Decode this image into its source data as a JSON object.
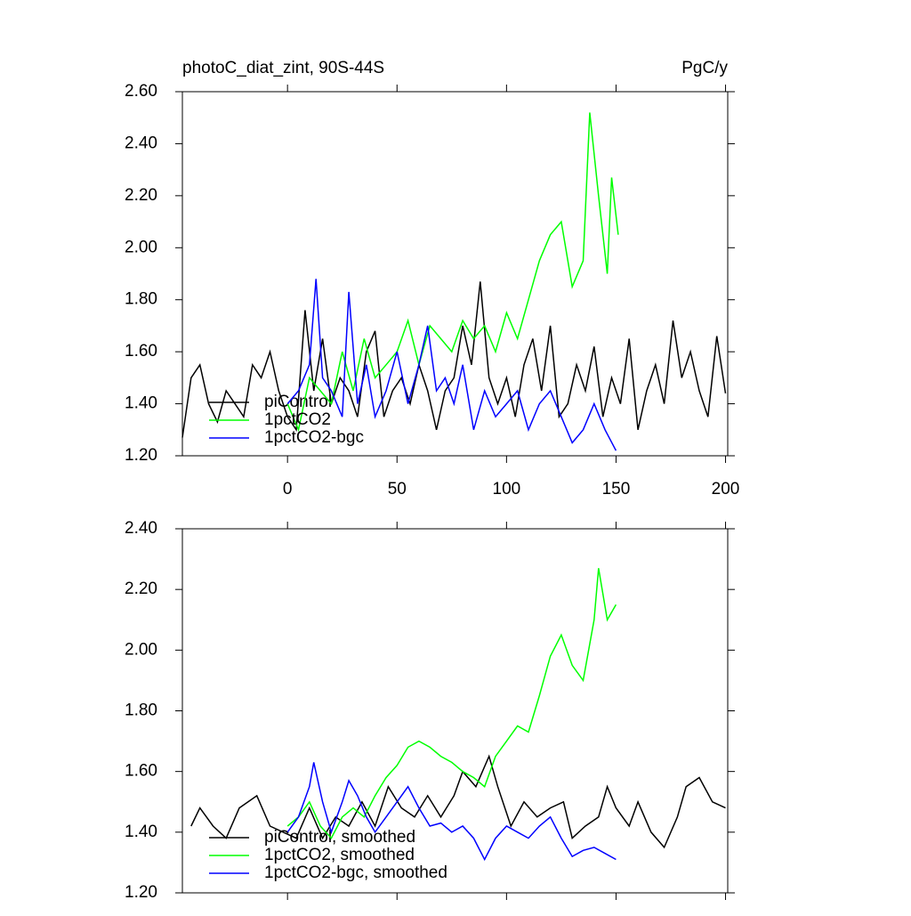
{
  "chart_data": [
    {
      "type": "line",
      "title": "photoC_diat_zint, 90S-44S",
      "units": "PgC/y",
      "xlim": [
        -48,
        201
      ],
      "ylim": [
        1.2,
        2.6
      ],
      "xticks": [
        0,
        50,
        100,
        150,
        200
      ],
      "yticks": [
        {
          "value": 1.2,
          "label": "1.20"
        },
        {
          "value": 1.4,
          "label": "1.40"
        },
        {
          "value": 1.6,
          "label": "1.60"
        },
        {
          "value": 1.8,
          "label": "1.80"
        },
        {
          "value": 2.0,
          "label": "2.00"
        },
        {
          "value": 2.2,
          "label": "2.20"
        },
        {
          "value": 2.4,
          "label": "2.40"
        },
        {
          "value": 2.6,
          "label": "2.60"
        }
      ],
      "series": [
        {
          "name": "piControl",
          "color": "#000000",
          "x": [
            -48,
            -44,
            -40,
            -36,
            -32,
            -28,
            -24,
            -20,
            -16,
            -12,
            -8,
            -4,
            0,
            4,
            8,
            12,
            16,
            20,
            24,
            28,
            32,
            36,
            40,
            44,
            48,
            52,
            56,
            60,
            64,
            68,
            72,
            76,
            80,
            84,
            88,
            92,
            96,
            100,
            104,
            108,
            112,
            116,
            120,
            124,
            128,
            132,
            136,
            140,
            144,
            148,
            152,
            156,
            160,
            164,
            168,
            172,
            176,
            180,
            184,
            188,
            192,
            196,
            200
          ],
          "values": [
            1.27,
            1.5,
            1.55,
            1.4,
            1.33,
            1.45,
            1.4,
            1.35,
            1.55,
            1.5,
            1.6,
            1.45,
            1.35,
            1.3,
            1.76,
            1.45,
            1.65,
            1.4,
            1.5,
            1.45,
            1.35,
            1.6,
            1.68,
            1.35,
            1.45,
            1.5,
            1.4,
            1.55,
            1.45,
            1.3,
            1.45,
            1.5,
            1.7,
            1.55,
            1.87,
            1.5,
            1.4,
            1.5,
            1.35,
            1.55,
            1.65,
            1.45,
            1.7,
            1.35,
            1.4,
            1.55,
            1.45,
            1.62,
            1.35,
            1.5,
            1.4,
            1.65,
            1.3,
            1.45,
            1.55,
            1.4,
            1.72,
            1.5,
            1.6,
            1.45,
            1.35,
            1.66,
            1.44
          ]
        },
        {
          "name": "1pctCO2",
          "color": "#00ff00",
          "x": [
            0,
            5,
            10,
            15,
            20,
            25,
            30,
            35,
            40,
            45,
            50,
            55,
            60,
            65,
            70,
            75,
            80,
            85,
            90,
            95,
            100,
            105,
            110,
            115,
            120,
            125,
            130,
            135,
            138,
            142,
            146,
            148,
            151
          ],
          "values": [
            1.4,
            1.3,
            1.5,
            1.45,
            1.4,
            1.6,
            1.45,
            1.65,
            1.5,
            1.55,
            1.6,
            1.72,
            1.55,
            1.7,
            1.65,
            1.6,
            1.72,
            1.65,
            1.7,
            1.6,
            1.75,
            1.65,
            1.8,
            1.95,
            2.05,
            2.1,
            1.85,
            1.95,
            2.52,
            2.2,
            1.9,
            2.27,
            2.05
          ]
        },
        {
          "name": "1pctCO2-bgc",
          "color": "#0000ff",
          "x": [
            0,
            5,
            10,
            13,
            16,
            20,
            25,
            28,
            32,
            36,
            40,
            45,
            50,
            55,
            60,
            64,
            68,
            72,
            76,
            80,
            85,
            90,
            95,
            100,
            105,
            110,
            115,
            120,
            125,
            130,
            135,
            140,
            145,
            150
          ],
          "values": [
            1.4,
            1.45,
            1.55,
            1.88,
            1.5,
            1.45,
            1.35,
            1.83,
            1.4,
            1.55,
            1.35,
            1.45,
            1.6,
            1.4,
            1.55,
            1.7,
            1.45,
            1.5,
            1.4,
            1.55,
            1.3,
            1.45,
            1.35,
            1.4,
            1.45,
            1.3,
            1.4,
            1.45,
            1.35,
            1.25,
            1.3,
            1.4,
            1.3,
            1.22
          ]
        }
      ]
    },
    {
      "type": "line",
      "xlim": [
        -48,
        201
      ],
      "ylim": [
        1.2,
        2.4
      ],
      "xticks": [
        0,
        50,
        100,
        150,
        200
      ],
      "yticks": [
        {
          "value": 1.2,
          "label": "1.20"
        },
        {
          "value": 1.4,
          "label": "1.40"
        },
        {
          "value": 1.6,
          "label": "1.60"
        },
        {
          "value": 1.8,
          "label": "1.80"
        },
        {
          "value": 2.0,
          "label": "2.00"
        },
        {
          "value": 2.2,
          "label": "2.20"
        },
        {
          "value": 2.4,
          "label": "2.40"
        }
      ],
      "series": [
        {
          "name": "piControl, smoothed",
          "color": "#000000",
          "x": [
            -44,
            -40,
            -34,
            -28,
            -22,
            -14,
            -8,
            -2,
            4,
            10,
            16,
            22,
            28,
            34,
            40,
            46,
            52,
            58,
            64,
            70,
            76,
            80,
            86,
            92,
            96,
            102,
            108,
            114,
            120,
            126,
            130,
            136,
            142,
            146,
            150,
            156,
            160,
            166,
            172,
            178,
            182,
            188,
            194,
            200
          ],
          "values": [
            1.42,
            1.48,
            1.42,
            1.38,
            1.48,
            1.52,
            1.42,
            1.4,
            1.38,
            1.48,
            1.38,
            1.45,
            1.42,
            1.5,
            1.42,
            1.55,
            1.48,
            1.45,
            1.52,
            1.45,
            1.52,
            1.6,
            1.55,
            1.65,
            1.55,
            1.42,
            1.5,
            1.45,
            1.48,
            1.5,
            1.38,
            1.42,
            1.45,
            1.55,
            1.48,
            1.42,
            1.5,
            1.4,
            1.35,
            1.45,
            1.55,
            1.58,
            1.5,
            1.48
          ]
        },
        {
          "name": "1pctCO2, smoothed",
          "color": "#00ff00",
          "x": [
            0,
            5,
            10,
            15,
            20,
            25,
            30,
            35,
            40,
            45,
            50,
            55,
            60,
            65,
            70,
            75,
            80,
            85,
            90,
            95,
            100,
            105,
            110,
            115,
            120,
            125,
            130,
            135,
            140,
            142,
            146,
            150
          ],
          "values": [
            1.42,
            1.45,
            1.5,
            1.42,
            1.38,
            1.45,
            1.48,
            1.45,
            1.52,
            1.58,
            1.62,
            1.68,
            1.7,
            1.68,
            1.65,
            1.63,
            1.6,
            1.58,
            1.55,
            1.65,
            1.7,
            1.75,
            1.73,
            1.85,
            1.98,
            2.05,
            1.95,
            1.9,
            2.1,
            2.27,
            2.1,
            2.15
          ]
        },
        {
          "name": "1pctCO2-bgc, smoothed",
          "color": "#0000ff",
          "x": [
            0,
            5,
            10,
            12,
            16,
            20,
            25,
            28,
            32,
            36,
            40,
            45,
            50,
            55,
            60,
            65,
            70,
            75,
            80,
            85,
            90,
            95,
            100,
            105,
            110,
            115,
            120,
            125,
            130,
            135,
            140,
            145,
            150
          ],
          "values": [
            1.4,
            1.45,
            1.55,
            1.63,
            1.5,
            1.4,
            1.5,
            1.57,
            1.52,
            1.45,
            1.4,
            1.45,
            1.5,
            1.55,
            1.48,
            1.42,
            1.43,
            1.4,
            1.42,
            1.38,
            1.31,
            1.38,
            1.42,
            1.4,
            1.38,
            1.42,
            1.45,
            1.38,
            1.32,
            1.34,
            1.35,
            1.33,
            1.31
          ]
        }
      ]
    }
  ]
}
